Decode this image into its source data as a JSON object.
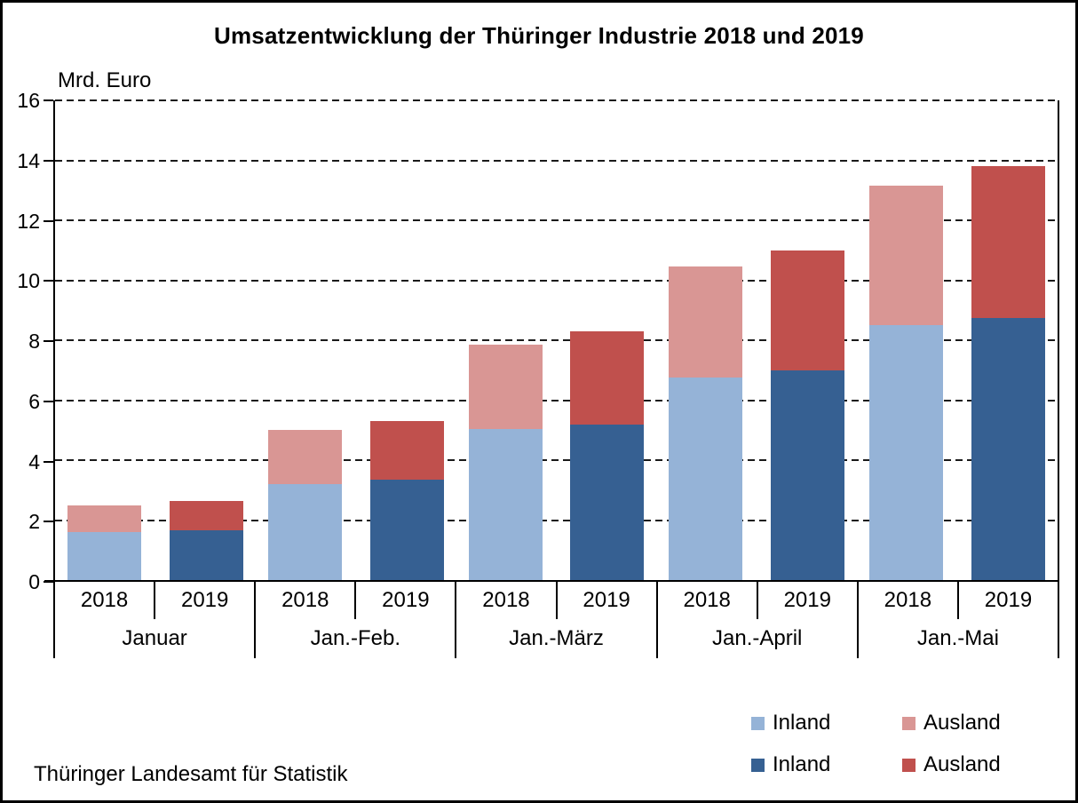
{
  "source": "Thüringer Landesamt für Statistik",
  "chart_data": {
    "type": "bar",
    "stacked": true,
    "title": "Umsatzentwicklung der Thüringer Industrie 2018 und 2019",
    "ylabel": "Mrd. Euro",
    "xlabel": "",
    "ylim": [
      0,
      16
    ],
    "ytick_step": 2,
    "yticks": [
      0,
      2,
      4,
      6,
      8,
      10,
      12,
      14,
      16
    ],
    "grid": "horizontal-dashed",
    "legend_position": "bottom-right",
    "categories": [
      "Januar",
      "Jan.-Feb.",
      "Jan.-März",
      "Jan.-April",
      "Jan.-Mai"
    ],
    "group_years": [
      "2018",
      "2019"
    ],
    "series": [
      {
        "name": "Inland",
        "year": "2018",
        "color": "#95B3D7",
        "values": [
          1.6,
          3.2,
          5.05,
          6.75,
          8.5
        ]
      },
      {
        "name": "Ausland",
        "year": "2018",
        "color": "#D99694",
        "values": [
          0.9,
          1.8,
          2.8,
          3.7,
          4.65
        ]
      },
      {
        "name": "Inland",
        "year": "2019",
        "color": "#366092",
        "values": [
          1.65,
          3.35,
          5.2,
          7.0,
          8.75
        ]
      },
      {
        "name": "Ausland",
        "year": "2019",
        "color": "#C0504D",
        "values": [
          1.0,
          1.95,
          3.1,
          4.0,
          5.05
        ]
      }
    ]
  }
}
